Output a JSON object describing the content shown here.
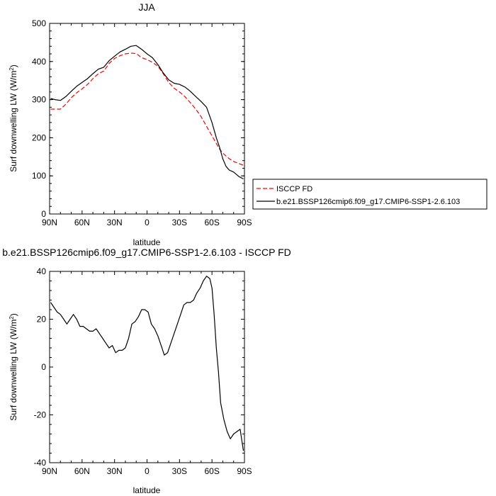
{
  "chart_data": [
    {
      "type": "line",
      "title": "JJA",
      "xlabel": "latitude",
      "ylabel": "Surf downwelling LW (W/m²)",
      "ylabel_main": "Surf downwelling LW (W/m",
      "ylabel_sup": "2",
      "ylabel_tail": ")",
      "xlim": [
        90,
        -90
      ],
      "ylim": [
        0,
        500
      ],
      "x_ticks": [
        90,
        60,
        30,
        0,
        -30,
        -60,
        -90
      ],
      "x_tick_labels": [
        "90N",
        "60N",
        "30N",
        "0",
        "30S",
        "60S",
        "90S"
      ],
      "y_ticks": [
        0,
        100,
        200,
        300,
        400,
        500
      ],
      "y_tick_labels": [
        "0",
        "100",
        "200",
        "300",
        "400",
        "500"
      ],
      "legend_position": "right",
      "x": [
        89,
        85,
        80,
        75,
        70,
        65,
        60,
        55,
        50,
        45,
        40,
        35,
        30,
        25,
        20,
        15,
        10,
        5,
        0,
        -5,
        -10,
        -15,
        -20,
        -25,
        -30,
        -35,
        -40,
        -45,
        -50,
        -55,
        -60,
        -64,
        -67,
        -70,
        -73,
        -76,
        -80,
        -85,
        -89
      ],
      "series": [
        {
          "name": "ISCCP FD",
          "color": "#ff0000",
          "dash": "dashed",
          "values": [
            275,
            275,
            275,
            288,
            305,
            318,
            328,
            340,
            355,
            368,
            375,
            395,
            408,
            415,
            420,
            422,
            421,
            410,
            405,
            398,
            388,
            368,
            345,
            330,
            320,
            308,
            292,
            275,
            255,
            230,
            205,
            185,
            170,
            160,
            152,
            145,
            138,
            132,
            128
          ]
        },
        {
          "name": "b.e21.BSSP126cmip6.f09_g17.CMIP6-SSP1-2.6.103",
          "color": "#000000",
          "dash": "solid",
          "values": [
            303,
            300,
            298,
            308,
            322,
            335,
            345,
            355,
            368,
            380,
            385,
            402,
            414,
            425,
            432,
            440,
            442,
            432,
            420,
            410,
            392,
            370,
            352,
            343,
            340,
            333,
            322,
            308,
            295,
            280,
            240,
            200,
            175,
            145,
            125,
            115,
            110,
            98,
            92
          ]
        }
      ]
    },
    {
      "type": "line",
      "title": "b.e21.BSSP126cmip6.f09_g17.CMIP6-SSP1-2.6.103 - ISCCP FD",
      "xlabel": "latitude",
      "ylabel": "Surf downwelling LW (W/m²)",
      "ylabel_main": "Surf downwelling LW (W/m",
      "ylabel_sup": "2",
      "ylabel_tail": ")",
      "xlim": [
        90,
        -90
      ],
      "ylim": [
        -40,
        40
      ],
      "x_ticks": [
        90,
        60,
        30,
        0,
        -30,
        -60,
        -90
      ],
      "x_tick_labels": [
        "90N",
        "60N",
        "30N",
        "0",
        "30S",
        "60S",
        "90S"
      ],
      "y_ticks": [
        -40,
        -20,
        0,
        20,
        40
      ],
      "y_tick_labels": [
        "-40",
        "-20",
        "0",
        "20",
        "40"
      ],
      "series": [
        {
          "color": "#000000",
          "x": [
            89,
            86,
            83,
            80,
            77,
            74,
            71,
            68,
            65,
            62,
            59,
            56,
            53,
            50,
            47,
            44,
            41,
            38,
            35,
            32,
            29,
            26,
            23,
            20,
            17,
            14,
            11,
            8,
            5,
            2,
            -1,
            -4,
            -7,
            -10,
            -13,
            -16,
            -19,
            -22,
            -25,
            -28,
            -31,
            -34,
            -37,
            -40,
            -43,
            -46,
            -49,
            -52,
            -55,
            -58,
            -60,
            -62,
            -64,
            -66,
            -68,
            -71,
            -74,
            -77,
            -80,
            -83,
            -86,
            -89
          ],
          "values": [
            27,
            25,
            23,
            22,
            20,
            18,
            20,
            22,
            20,
            17,
            17,
            16,
            15,
            15,
            16,
            14,
            12,
            10,
            8,
            9,
            6,
            7,
            7,
            8,
            12,
            18,
            19,
            21,
            24,
            24,
            23,
            18,
            16,
            13,
            9,
            5,
            6,
            10,
            14,
            18,
            22,
            26,
            27,
            27,
            28,
            31,
            33,
            36,
            38,
            37,
            33,
            22,
            8,
            -2,
            -15,
            -22,
            -27,
            -30,
            -28,
            -27,
            -26,
            -35
          ]
        }
      ]
    }
  ]
}
